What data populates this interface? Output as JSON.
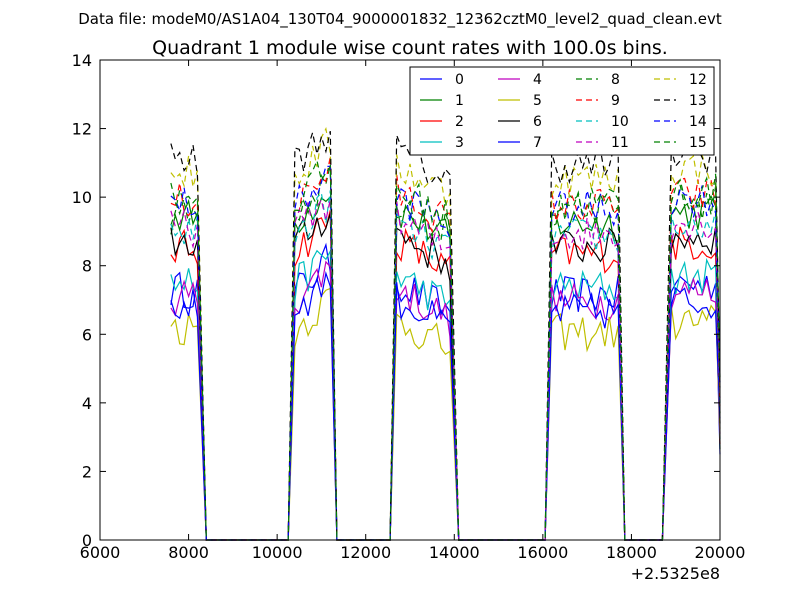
{
  "chart_data": {
    "type": "line",
    "suptitle": "Data file: modeM0/AS1A04_130T04_9000001832_12362cztM0_level2_quad_clean.evt",
    "title": "Quadrant 1 module wise count rates with 100.0s bins.",
    "xlabel": "",
    "ylabel": "",
    "x_offset_label": "+2.5325e8",
    "xlim": [
      6000,
      20000
    ],
    "ylim": [
      0,
      14
    ],
    "xticks": [
      6000,
      8000,
      10000,
      12000,
      14000,
      16000,
      18000,
      20000
    ],
    "yticks": [
      0,
      2,
      4,
      6,
      8,
      10,
      12,
      14
    ],
    "grid": false,
    "legend_position": "top-right",
    "segments": [
      {
        "start": 7600,
        "end": 8200,
        "drop_end": 8400,
        "rise_start": null
      },
      {
        "start": 10400,
        "end": 11200,
        "drop_end": 11350,
        "rise_start": 10250
      },
      {
        "start": 12700,
        "end": 13900,
        "drop_end": 14100,
        "rise_start": 12550
      },
      {
        "start": 16200,
        "end": 17700,
        "drop_end": 17850,
        "rise_start": 16050
      },
      {
        "start": 18900,
        "end": 19900,
        "drop_end": 20000,
        "rise_start": 18700
      }
    ],
    "series": [
      {
        "name": "0",
        "color": "#0000ff",
        "dash": "solid",
        "level": 7.2
      },
      {
        "name": "1",
        "color": "#008000",
        "dash": "solid",
        "level": 9.3
      },
      {
        "name": "2",
        "color": "#ff0000",
        "dash": "solid",
        "level": 8.4
      },
      {
        "name": "3",
        "color": "#00bfbf",
        "dash": "solid",
        "level": 7.4
      },
      {
        "name": "4",
        "color": "#bf00bf",
        "dash": "solid",
        "level": 7.0
      },
      {
        "name": "5",
        "color": "#bfbf00",
        "dash": "solid",
        "level": 6.1
      },
      {
        "name": "6",
        "color": "#000000",
        "dash": "solid",
        "level": 8.6
      },
      {
        "name": "7",
        "color": "#0000ff",
        "dash": "solid",
        "level": 6.7
      },
      {
        "name": "8",
        "color": "#008000",
        "dash": "dashed",
        "level": 9.6
      },
      {
        "name": "9",
        "color": "#ff0000",
        "dash": "dashed",
        "level": 9.8
      },
      {
        "name": "10",
        "color": "#00bfbf",
        "dash": "dashed",
        "level": 8.9
      },
      {
        "name": "11",
        "color": "#bf00bf",
        "dash": "dashed",
        "level": 9.0
      },
      {
        "name": "12",
        "color": "#bfbf00",
        "dash": "dashed",
        "level": 10.6
      },
      {
        "name": "13",
        "color": "#000000",
        "dash": "dashed",
        "level": 11.0
      },
      {
        "name": "14",
        "color": "#0000ff",
        "dash": "dashed",
        "level": 9.7
      },
      {
        "name": "15",
        "color": "#008000",
        "dash": "dashed",
        "level": 9.9
      }
    ]
  }
}
